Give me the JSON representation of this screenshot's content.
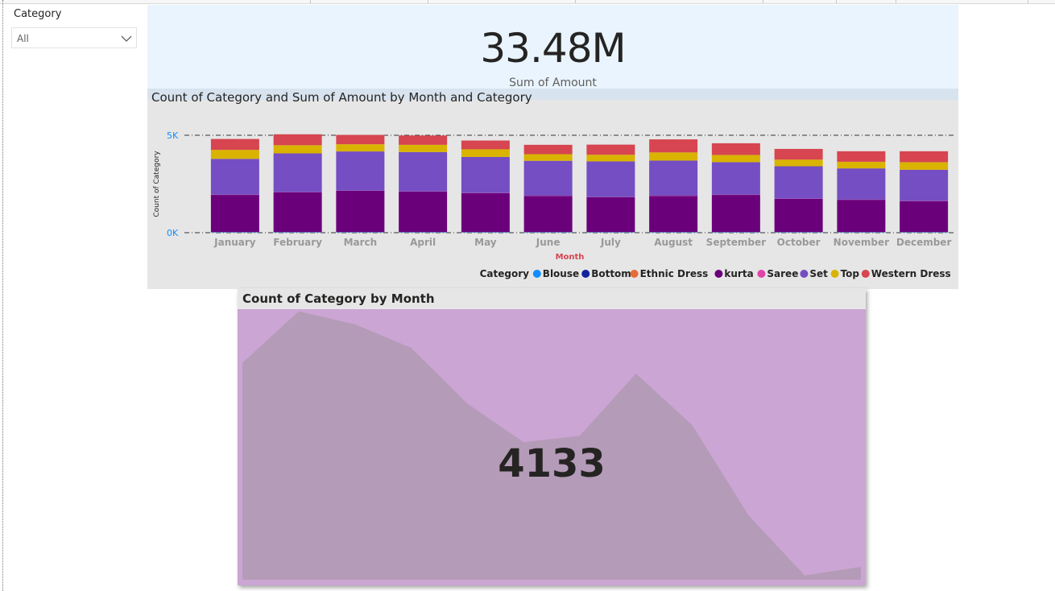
{
  "slicer": {
    "title": "Category",
    "selected": "All"
  },
  "card": {
    "value": "33.48M",
    "label": "Sum of Amount"
  },
  "stacked_chart": {
    "title": "Count of Category and Sum of Amount by Month and Category",
    "ylabel": "Count of Category",
    "xlabel": "Month",
    "y_ticks": [
      "0K",
      "5K"
    ],
    "legend_title": "Category"
  },
  "area_chart": {
    "title": "Count of Category by Month",
    "value": "4133"
  },
  "colors": {
    "Blouse": "#118dff",
    "Bottom": "#12239e",
    "Ethnic Dress": "#e66c37",
    "kurta": "#6b007b",
    "Saree": "#e044a7",
    "Set": "#744ec2",
    "Top": "#d9b300",
    "Western Dress": "#d64550",
    "axis_accent": "#118dff",
    "xlabel_accent": "#d64550"
  },
  "chart_data": [
    {
      "type": "bar",
      "stacked": true,
      "title": "Count of Category and Sum of Amount by Month and Category",
      "xlabel": "Month",
      "ylabel": "Count of Category",
      "ylim": [
        0,
        5000
      ],
      "grid": true,
      "legend": "bottom-right",
      "categories": [
        "January",
        "February",
        "March",
        "April",
        "May",
        "June",
        "July",
        "August",
        "September",
        "October",
        "November",
        "December"
      ],
      "series": [
        {
          "name": "Blouse",
          "values": [
            20,
            20,
            20,
            20,
            20,
            20,
            20,
            20,
            20,
            20,
            20,
            20
          ]
        },
        {
          "name": "Bottom",
          "values": [
            10,
            10,
            10,
            10,
            10,
            10,
            10,
            10,
            10,
            10,
            10,
            10
          ]
        },
        {
          "name": "Ethnic Dress",
          "values": [
            10,
            10,
            10,
            10,
            10,
            10,
            10,
            10,
            10,
            10,
            10,
            10
          ]
        },
        {
          "name": "kurta",
          "values": [
            1900,
            2040,
            2110,
            2070,
            1990,
            1850,
            1780,
            1850,
            1900,
            1700,
            1650,
            1580
          ]
        },
        {
          "name": "Saree",
          "values": [
            10,
            10,
            10,
            10,
            10,
            10,
            10,
            10,
            10,
            10,
            10,
            10
          ]
        },
        {
          "name": "Set",
          "values": [
            1840,
            1980,
            2010,
            2020,
            1850,
            1790,
            1830,
            1800,
            1670,
            1660,
            1600,
            1600
          ]
        },
        {
          "name": "Top",
          "values": [
            460,
            420,
            370,
            370,
            390,
            340,
            340,
            420,
            370,
            340,
            340,
            390
          ]
        },
        {
          "name": "Western Dress",
          "values": [
            560,
            560,
            480,
            480,
            450,
            480,
            520,
            670,
            600,
            550,
            540,
            560
          ]
        }
      ]
    },
    {
      "type": "area",
      "title": "Count of Category by Month",
      "categories": [
        "January",
        "February",
        "March",
        "April",
        "May",
        "June",
        "July",
        "August",
        "September",
        "October",
        "November",
        "December"
      ],
      "values": [
        4810,
        5050,
        4990,
        4880,
        4620,
        4440,
        4470,
        4760,
        4520,
        4100,
        3820,
        3860
      ],
      "ylim": [
        3800,
        5060
      ],
      "summary_value": "4133"
    }
  ]
}
